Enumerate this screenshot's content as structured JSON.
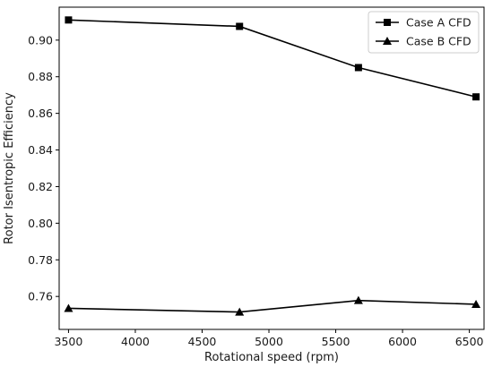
{
  "chart_data": {
    "type": "line",
    "xlabel": "Rotational speed (rpm)",
    "ylabel": "Rotor Isentropic Efficiency",
    "xlim": [
      3430,
      6610
    ],
    "ylim": [
      0.742,
      0.918
    ],
    "xticks": [
      3500,
      4000,
      4500,
      5000,
      5500,
      6000,
      6500
    ],
    "yticks": [
      0.76,
      0.78,
      0.8,
      0.82,
      0.84,
      0.86,
      0.88,
      0.9
    ],
    "ytick_labels": [
      "0.76",
      "0.78",
      "0.80",
      "0.82",
      "0.84",
      "0.86",
      "0.88",
      "0.90"
    ],
    "grid": false,
    "legend_position": "top-right",
    "series": [
      {
        "name": "Case A CFD",
        "marker": "square",
        "color": "#000000",
        "x": [
          3500,
          4780,
          5670,
          6550
        ],
        "y": [
          0.911,
          0.9075,
          0.885,
          0.869
        ]
      },
      {
        "name": "Case B CFD",
        "marker": "triangle",
        "color": "#000000",
        "x": [
          3500,
          4780,
          5670,
          6550
        ],
        "y": [
          0.7535,
          0.7515,
          0.7578,
          0.7557
        ]
      }
    ]
  }
}
